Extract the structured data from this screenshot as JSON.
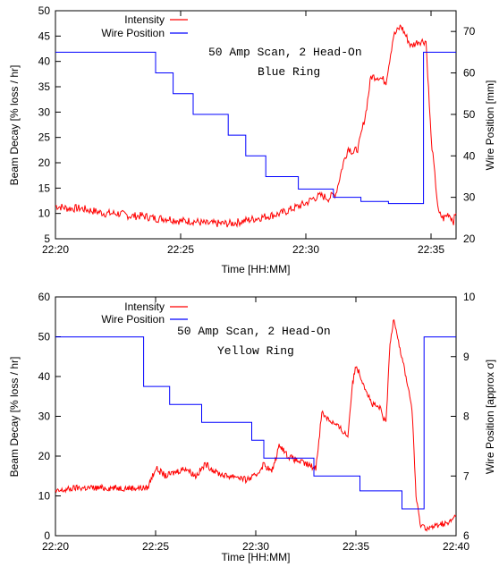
{
  "chart_data": [
    {
      "type": "line",
      "legend_position": "top-left",
      "xlabel": "Time [HH:MM]",
      "ylabel": "Beam Decay [% loss / hr]",
      "y2label": "Wire Position [mm]",
      "x_start": "22:20",
      "x_end": "22:36",
      "xticks": [
        "22:20",
        "22:25",
        "22:30",
        "22:35"
      ],
      "xtick_minutes": [
        0,
        5,
        10,
        15
      ],
      "ylim": [
        5,
        50
      ],
      "yticks": [
        5,
        10,
        15,
        20,
        25,
        30,
        35,
        40,
        45,
        50
      ],
      "y2lim": [
        20,
        75
      ],
      "y2ticks": [
        20,
        30,
        40,
        50,
        60,
        70
      ],
      "annotation": [
        "50 Amp Scan, 2 Head-On",
        "Blue Ring"
      ],
      "series": [
        {
          "name": "Intensity",
          "axis": "left",
          "color": "#ff0000",
          "x_minutes": [
            0.0,
            0.5,
            1.0,
            1.5,
            2.0,
            2.5,
            3.0,
            3.5,
            4.0,
            4.5,
            5.0,
            5.5,
            6.0,
            6.5,
            7.0,
            7.5,
            8.0,
            8.5,
            9.0,
            9.5,
            10.0,
            10.3,
            10.6,
            10.9,
            11.2,
            11.5,
            11.7,
            11.9,
            12.1,
            12.4,
            12.6,
            12.9,
            13.2,
            13.5,
            13.8,
            14.0,
            14.2,
            14.5,
            14.8,
            15.0,
            15.3,
            15.5,
            15.7,
            15.9,
            16.0
          ],
          "values": [
            11.5,
            11,
            11,
            10.5,
            10,
            10,
            9.5,
            9.5,
            9,
            9,
            8.5,
            8.5,
            8,
            8,
            8,
            8.5,
            9,
            9.5,
            10,
            11,
            12,
            13,
            13.5,
            13,
            14,
            20,
            23,
            22,
            23,
            30,
            37,
            37,
            36,
            45,
            47,
            45,
            43,
            44,
            44,
            25,
            10,
            9,
            10,
            8.5,
            10
          ]
        },
        {
          "name": "Wire Position",
          "axis": "right",
          "color": "#0000ff",
          "step": true,
          "x_minutes": [
            0,
            4,
            4.7,
            5.5,
            6.9,
            7.6,
            8.4,
            9.7,
            11.1,
            12.2,
            13.3,
            14.7,
            15.05,
            16.0
          ],
          "values": [
            65,
            60,
            55,
            50,
            45,
            40,
            35,
            32,
            30,
            29,
            28.5,
            65,
            65,
            65
          ]
        }
      ]
    },
    {
      "type": "line",
      "legend_position": "top-left",
      "xlabel": "Time [HH:MM]",
      "ylabel": "Beam Decay [% loss / hr]",
      "y2label": "Wire Position [approx σ]",
      "x_start": "22:20",
      "x_end": "22:40",
      "xticks": [
        "22:20",
        "22:25",
        "22:30",
        "22:35",
        "22:40"
      ],
      "xtick_minutes": [
        0,
        5,
        10,
        15,
        20
      ],
      "ylim": [
        0,
        60
      ],
      "yticks": [
        0,
        10,
        20,
        30,
        40,
        50,
        60
      ],
      "y2lim": [
        6,
        10
      ],
      "y2ticks": [
        6,
        7,
        8,
        9,
        10
      ],
      "annotation": [
        "50 Amp Scan, 2 Head-On",
        "Yellow Ring"
      ],
      "series": [
        {
          "name": "Intensity",
          "axis": "left",
          "color": "#ff0000",
          "x_minutes": [
            0,
            1,
            2,
            3,
            4,
            4.6,
            5.0,
            5.5,
            6.0,
            6.5,
            7.0,
            7.5,
            8.0,
            8.5,
            9.0,
            9.5,
            10.0,
            10.4,
            10.8,
            11.2,
            11.6,
            12.0,
            12.5,
            13.0,
            13.3,
            13.7,
            14.2,
            14.6,
            14.8,
            15.0,
            15.4,
            15.8,
            16.2,
            16.5,
            16.7,
            16.9,
            17.2,
            17.5,
            17.8,
            18.0,
            18.2,
            18.5,
            18.8,
            19.2,
            19.6,
            20.0
          ],
          "values": [
            11,
            12,
            12,
            12,
            12,
            12,
            17,
            15,
            16,
            17,
            15,
            18,
            16,
            15,
            15,
            14,
            15,
            18,
            16,
            23,
            20,
            19,
            18,
            17,
            31,
            29,
            27,
            25,
            37,
            43,
            38,
            33,
            32,
            28,
            48,
            55,
            47,
            40,
            32,
            10,
            3,
            2,
            2,
            3,
            3,
            5
          ]
        },
        {
          "name": "Wire Position",
          "axis": "right",
          "color": "#0000ff",
          "step": true,
          "x_minutes": [
            0,
            4.4,
            5.7,
            7.3,
            9.8,
            10.4,
            12.9,
            15.2,
            17.3,
            18.4,
            20.0
          ],
          "values": [
            9.33,
            8.5,
            8.2,
            7.9,
            7.6,
            7.3,
            7.0,
            6.75,
            6.45,
            9.33,
            9.33
          ]
        }
      ]
    }
  ]
}
